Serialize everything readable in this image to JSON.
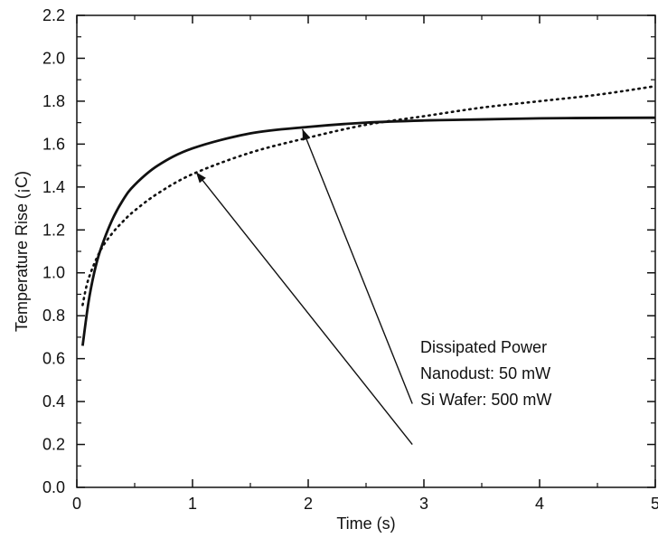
{
  "chart_data": {
    "type": "line",
    "title": "",
    "xlabel": "Time (s)",
    "ylabel": "Temperature Rise (¡C)",
    "xlim": [
      0,
      5
    ],
    "ylim": [
      0.0,
      2.2
    ],
    "x_ticks": [
      "0",
      "1",
      "2",
      "3",
      "4",
      "5"
    ],
    "y_ticks": [
      "0.0",
      "0.2",
      "0.4",
      "0.6",
      "0.8",
      "1.0",
      "1.2",
      "1.4",
      "1.6",
      "1.8",
      "2.0",
      "2.2"
    ],
    "grid": false,
    "series": [
      {
        "style": "solid",
        "x": [
          0.05,
          0.1,
          0.15,
          0.2,
          0.3,
          0.4,
          0.5,
          0.7,
          1.0,
          1.5,
          2.0,
          2.5,
          3.0,
          3.5,
          4.0,
          4.5,
          5.0
        ],
        "y": [
          0.66,
          0.86,
          1.0,
          1.1,
          1.24,
          1.34,
          1.41,
          1.5,
          1.58,
          1.65,
          1.68,
          1.7,
          1.71,
          1.715,
          1.72,
          1.722,
          1.723
        ]
      },
      {
        "style": "dotted",
        "x": [
          0.05,
          0.1,
          0.2,
          0.3,
          0.4,
          0.5,
          0.7,
          1.0,
          1.5,
          2.0,
          2.5,
          3.0,
          3.5,
          4.0,
          4.5,
          5.0
        ],
        "y": [
          0.85,
          0.97,
          1.1,
          1.18,
          1.24,
          1.29,
          1.37,
          1.46,
          1.56,
          1.63,
          1.69,
          1.73,
          1.77,
          1.8,
          1.83,
          1.87
        ]
      }
    ],
    "annotations": {
      "lines": [
        "Dissipated Power",
        "Nanodust:  50 mW",
        "Si Wafer:  500 mW"
      ],
      "arrows": [
        {
          "from": [
            2.9,
            0.39
          ],
          "to": [
            1.95,
            1.67
          ]
        },
        {
          "from": [
            2.9,
            0.2
          ],
          "to": [
            1.03,
            1.47
          ]
        }
      ]
    }
  }
}
